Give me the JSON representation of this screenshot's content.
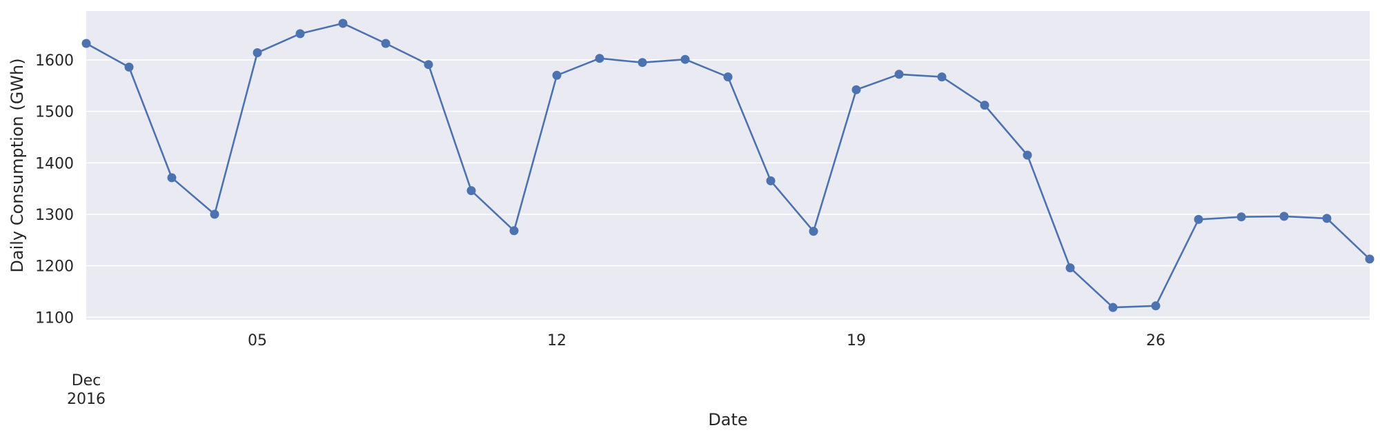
{
  "chart_data": {
    "type": "line",
    "xlabel": "Date",
    "ylabel": "Daily Consumption (GWh)",
    "x": [
      "2016-12-01",
      "2016-12-02",
      "2016-12-03",
      "2016-12-04",
      "2016-12-05",
      "2016-12-06",
      "2016-12-07",
      "2016-12-08",
      "2016-12-09",
      "2016-12-10",
      "2016-12-11",
      "2016-12-12",
      "2016-12-13",
      "2016-12-14",
      "2016-12-15",
      "2016-12-16",
      "2016-12-17",
      "2016-12-18",
      "2016-12-19",
      "2016-12-20",
      "2016-12-21",
      "2016-12-22",
      "2016-12-23",
      "2016-12-24",
      "2016-12-25",
      "2016-12-26",
      "2016-12-27",
      "2016-12-28",
      "2016-12-29",
      "2016-12-30",
      "2016-12-31"
    ],
    "series": [
      {
        "values": [
          1632,
          1586,
          1371,
          1300,
          1614,
          1651,
          1671,
          1632,
          1591,
          1346,
          1268,
          1570,
          1603,
          1595,
          1601,
          1567,
          1365,
          1267,
          1542,
          1572,
          1567,
          1512,
          1415,
          1196,
          1119,
          1122,
          1290,
          1295,
          1296,
          1292,
          1213
        ]
      }
    ],
    "xlim": [
      "2016-12-01",
      "2016-12-31"
    ],
    "ylim": [
      1095,
      1695
    ],
    "yticks": [
      "1100",
      "1200",
      "1300",
      "1400",
      "1500",
      "1600"
    ],
    "xticks": [
      {
        "date": "2016-12-01",
        "label": "",
        "major_line1": "Dec",
        "major_line2": "2016"
      },
      {
        "date": "2016-12-05",
        "label": "05"
      },
      {
        "date": "2016-12-12",
        "label": "12"
      },
      {
        "date": "2016-12-19",
        "label": "19"
      },
      {
        "date": "2016-12-26",
        "label": "26"
      }
    ],
    "grid": "horizontal",
    "background_color": "#eaeaf2",
    "line_color": "#4c72b0"
  }
}
